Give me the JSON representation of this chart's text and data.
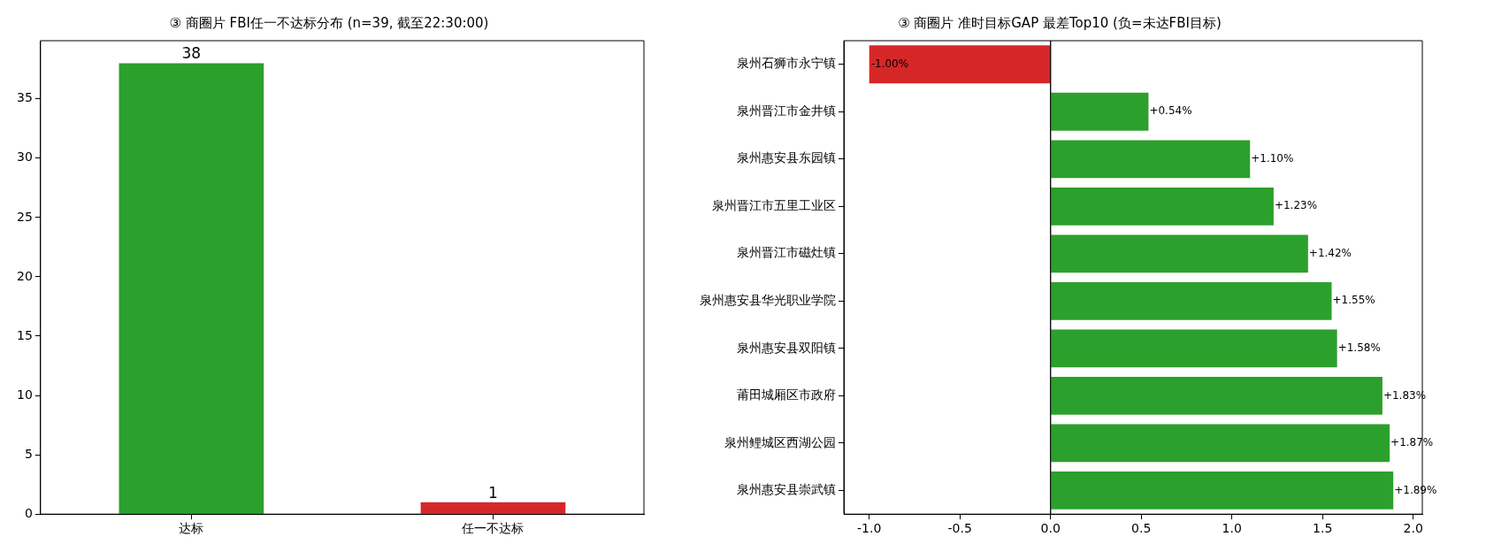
{
  "chart_data": [
    {
      "type": "bar",
      "title": "③ 商圈片 FBI任一不达标分布 (n=39, 截至22:30:00)",
      "categories": [
        "达标",
        "任一不达标"
      ],
      "values": [
        38,
        1
      ],
      "colors": [
        "#2ca02c",
        "#d62728"
      ],
      "ylim": [
        0,
        39.9
      ],
      "yticks": [
        0,
        5,
        10,
        15,
        20,
        25,
        30,
        35
      ],
      "data_labels": true,
      "grid": false,
      "legend": false
    },
    {
      "type": "bar",
      "orientation": "horizontal",
      "title": "③ 商圈片 准时目标GAP 最差Top10 (负=未达FBI目标)",
      "categories": [
        "泉州石狮市永宁镇",
        "泉州晋江市金井镇",
        "泉州惠安县东园镇",
        "泉州晋江市五里工业区",
        "泉州晋江市磁灶镇",
        "泉州惠安县华光职业学院",
        "泉州惠安县双阳镇",
        "莆田城厢区市政府",
        "泉州鲤城区西湖公园",
        "泉州惠安县崇武镇"
      ],
      "values": [
        -1.0,
        0.54,
        1.1,
        1.23,
        1.42,
        1.55,
        1.58,
        1.83,
        1.87,
        1.89
      ],
      "value_labels": [
        "-1.00%",
        "+0.54%",
        "+1.10%",
        "+1.23%",
        "+1.42%",
        "+1.55%",
        "+1.58%",
        "+1.83%",
        "+1.87%",
        "+1.89%"
      ],
      "colors": [
        "#d62728",
        "#2ca02c",
        "#2ca02c",
        "#2ca02c",
        "#2ca02c",
        "#2ca02c",
        "#2ca02c",
        "#2ca02c",
        "#2ca02c",
        "#2ca02c"
      ],
      "xlim": [
        -1.14,
        2.05
      ],
      "xticks": [
        {
          "value": -1,
          "label": "-1.0"
        },
        {
          "value": -0.5,
          "label": "-0.5"
        },
        {
          "value": 0,
          "label": "0.0"
        },
        {
          "value": 0.5,
          "label": "0.5"
        },
        {
          "value": 1,
          "label": "1.0"
        },
        {
          "value": 1.5,
          "label": "1.5"
        },
        {
          "value": 2,
          "label": "2.0"
        }
      ],
      "ref_lines": [
        {
          "axis": "x",
          "value": 0,
          "color": "#000000"
        }
      ],
      "grid": false,
      "legend": false
    }
  ]
}
